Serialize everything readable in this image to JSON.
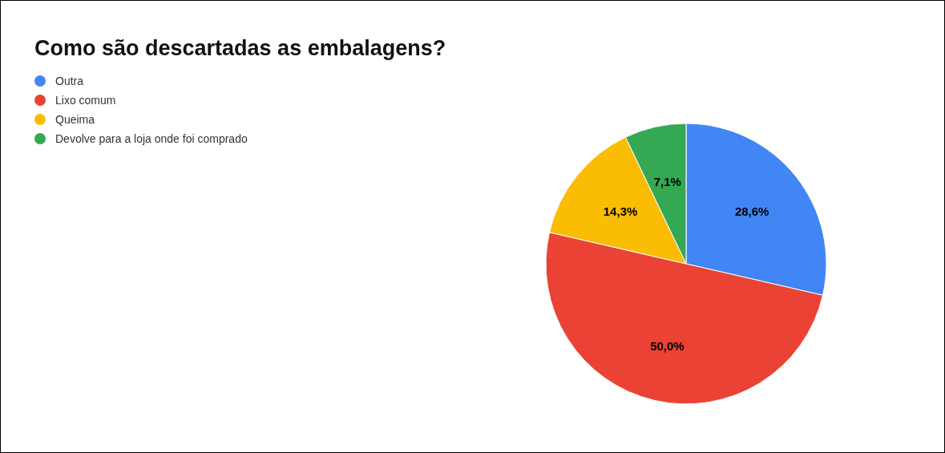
{
  "chart_data": {
    "type": "pie",
    "title": "Como são descartadas as embalagens?",
    "categories": [
      "Outra",
      "Lixo comum",
      "Queima",
      "Devolve para a loja onde foi comprado"
    ],
    "values": [
      28.6,
      50.0,
      14.3,
      7.1
    ],
    "colors": [
      "#4285f4",
      "#ea4335",
      "#fbbc04",
      "#34a853"
    ],
    "value_labels": [
      "28,6%",
      "50,0%",
      "14,3%",
      "7,1%"
    ],
    "legend": "top left"
  }
}
